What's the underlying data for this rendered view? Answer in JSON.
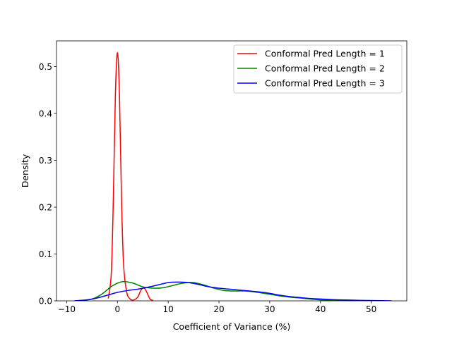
{
  "chart_data": {
    "type": "line",
    "xlabel": "Coefficient of Variance (%)",
    "ylabel": "Density",
    "xlim": [
      -12,
      57
    ],
    "ylim": [
      0,
      0.555
    ],
    "xticks": [
      -10,
      0,
      10,
      20,
      30,
      40,
      50
    ],
    "yticks": [
      0.0,
      0.1,
      0.2,
      0.3,
      0.4,
      0.5
    ],
    "xtick_labels": [
      "−10",
      "0",
      "10",
      "20",
      "30",
      "40",
      "50"
    ],
    "ytick_labels": [
      "0.0",
      "0.1",
      "0.2",
      "0.3",
      "0.4",
      "0.5"
    ],
    "legend_position": "top-right",
    "grid": false,
    "series": [
      {
        "name": "Conformal Pred Length = 1",
        "color": "#ff0000",
        "x": [
          -1.8,
          -1.2,
          -0.8,
          -0.4,
          0.0,
          0.4,
          0.8,
          1.2,
          1.8,
          2.5,
          3.2,
          4.0,
          4.6,
          5.2,
          5.8,
          6.4,
          7.0
        ],
        "y": [
          0.005,
          0.06,
          0.22,
          0.44,
          0.53,
          0.44,
          0.22,
          0.08,
          0.02,
          0.004,
          0.002,
          0.008,
          0.022,
          0.028,
          0.018,
          0.004,
          0.001
        ]
      },
      {
        "name": "Conformal Pred Length = 2",
        "color": "#008000",
        "x": [
          -8,
          -5,
          -3,
          -1,
          1,
          3,
          5,
          7,
          9,
          11,
          13,
          15,
          17,
          19,
          21,
          23,
          25,
          27,
          30,
          33,
          36,
          40,
          44,
          48
        ],
        "y": [
          0.0,
          0.004,
          0.015,
          0.032,
          0.041,
          0.038,
          0.03,
          0.027,
          0.028,
          0.033,
          0.038,
          0.039,
          0.034,
          0.027,
          0.022,
          0.021,
          0.021,
          0.019,
          0.014,
          0.009,
          0.006,
          0.002,
          0.0005,
          0.0
        ]
      },
      {
        "name": "Conformal Pred Length = 3",
        "color": "#0000ff",
        "x": [
          -8.5,
          -6,
          -4,
          -2,
          0,
          2,
          4,
          6,
          8,
          10,
          12,
          14,
          16,
          18,
          20,
          22,
          24,
          26,
          28,
          30,
          32,
          34,
          36,
          38,
          40,
          44,
          48,
          52,
          54
        ],
        "y": [
          0.0,
          0.002,
          0.006,
          0.012,
          0.018,
          0.022,
          0.025,
          0.029,
          0.034,
          0.039,
          0.04,
          0.039,
          0.035,
          0.03,
          0.027,
          0.025,
          0.023,
          0.021,
          0.019,
          0.016,
          0.012,
          0.009,
          0.007,
          0.005,
          0.004,
          0.002,
          0.001,
          0.0003,
          0.0
        ]
      }
    ]
  }
}
